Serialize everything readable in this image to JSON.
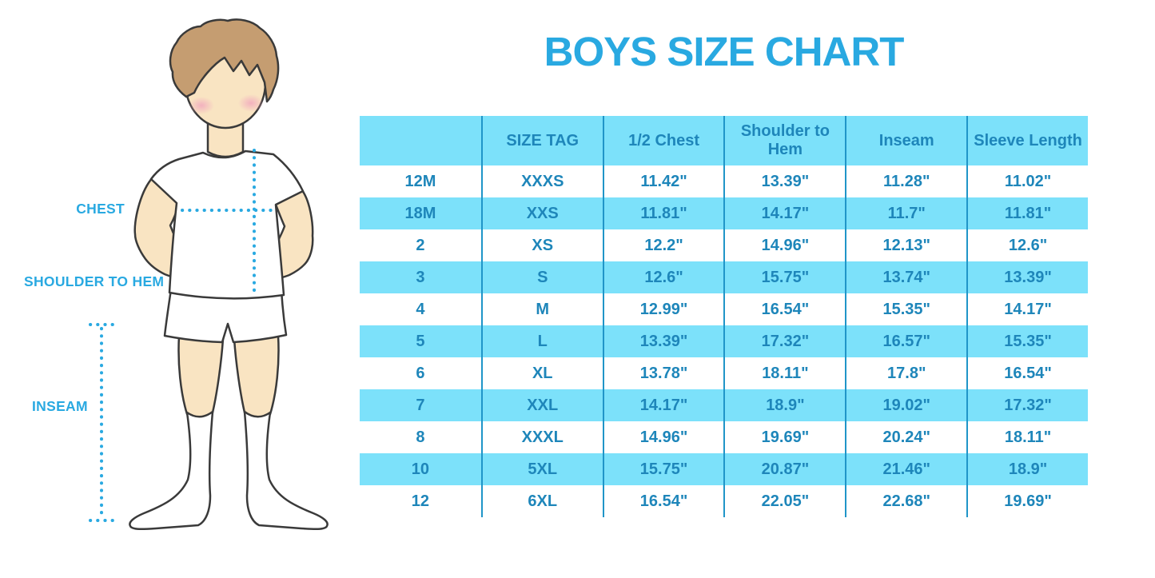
{
  "title": "BOYS SIZE CHART",
  "figure_labels": {
    "chest": "CHEST",
    "shoulder_to_hem": "SHOULDER TO HEM",
    "inseam": "INSEAM"
  },
  "colors": {
    "accent": "#29a9e1",
    "table_text": "#1e86ba",
    "row_fill": "#7ce1fa",
    "grid_line": "#2095c8",
    "outline": "#3a3a3a",
    "skin": "#f9e4c2",
    "hair": "#c59d71",
    "blush": "#f2aebe"
  },
  "chart_data": {
    "type": "table",
    "columns": [
      "",
      "SIZE TAG",
      "1/2 Chest",
      "Shoulder to Hem",
      "Inseam",
      "Sleeve Length"
    ],
    "rows": [
      [
        "12M",
        "XXXS",
        "11.42\"",
        "13.39\"",
        "11.28\"",
        "11.02\""
      ],
      [
        "18M",
        "XXS",
        "11.81\"",
        "14.17\"",
        "11.7\"",
        "11.81\""
      ],
      [
        "2",
        "XS",
        "12.2\"",
        "14.96\"",
        "12.13\"",
        "12.6\""
      ],
      [
        "3",
        "S",
        "12.6\"",
        "15.75\"",
        "13.74\"",
        "13.39\""
      ],
      [
        "4",
        "M",
        "12.99\"",
        "16.54\"",
        "15.35\"",
        "14.17\""
      ],
      [
        "5",
        "L",
        "13.39\"",
        "17.32\"",
        "16.57\"",
        "15.35\""
      ],
      [
        "6",
        "XL",
        "13.78\"",
        "18.11\"",
        "17.8\"",
        "16.54\""
      ],
      [
        "7",
        "XXL",
        "14.17\"",
        "18.9\"",
        "19.02\"",
        "17.32\""
      ],
      [
        "8",
        "XXXL",
        "14.96\"",
        "19.69\"",
        "20.24\"",
        "18.11\""
      ],
      [
        "10",
        "5XL",
        "15.75\"",
        "20.87\"",
        "21.46\"",
        "18.9\""
      ],
      [
        "12",
        "6XL",
        "16.54\"",
        "22.05\"",
        "22.68\"",
        "19.69\""
      ]
    ]
  }
}
